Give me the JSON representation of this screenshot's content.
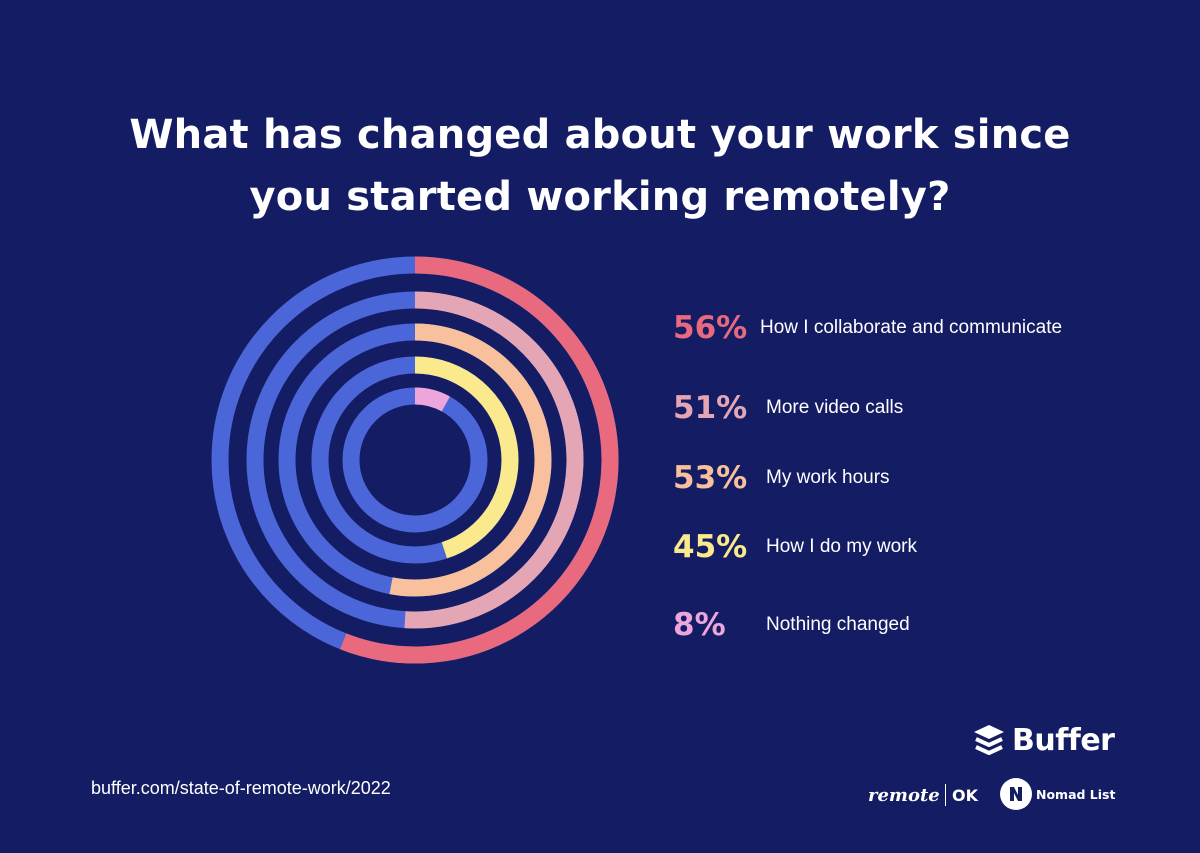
{
  "title_lines": [
    "What has changed about your work since",
    "you started working remotely?"
  ],
  "colors": {
    "background": "#141d63",
    "track": "#4b66d9",
    "ring_colors": [
      "#e96a7e",
      "#e4a6b5",
      "#f8c09c",
      "#fbe98e",
      "#eda6dc"
    ]
  },
  "chart_data": {
    "type": "radial-bar",
    "title": "What has changed about your work since you started working remotely?",
    "categories": [
      "How I collaborate and communicate",
      "More video calls",
      "My work hours",
      "How I do my work",
      "Nothing changed"
    ],
    "values": [
      56,
      51,
      53,
      45,
      8
    ],
    "unit": "%",
    "legend_position": "right"
  },
  "legend": [
    {
      "pct": "56%",
      "label": "How I collaborate and communicate",
      "color": "#e96a7e"
    },
    {
      "pct": "51%",
      "label": "More video calls",
      "color": "#e4a6b5"
    },
    {
      "pct": "53%",
      "label": "My work hours",
      "color": "#f8c09c"
    },
    {
      "pct": "45%",
      "label": "How I do my work",
      "color": "#fbe98e"
    },
    {
      "pct": "8%",
      "label": "Nothing changed",
      "color": "#eda6dc"
    }
  ],
  "footer": {
    "url": "buffer.com/state-of-remote-work/2022",
    "brand": "Buffer",
    "partner1_a": "remote",
    "partner1_b": "OK",
    "partner2": "Nomad List"
  }
}
